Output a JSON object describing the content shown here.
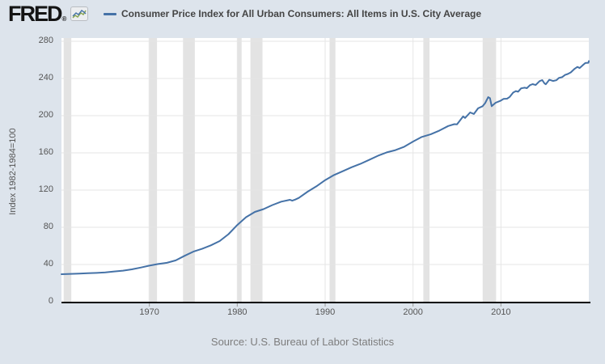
{
  "header": {
    "logo_text": "FRED",
    "logo_registered": "®",
    "title": "Consumer Price Index for All Urban Consumers: All Items in U.S. City Average"
  },
  "footer": {
    "source": "Source: U.S. Bureau of Labor Statistics"
  },
  "colors": {
    "page_background": "#dde4ec",
    "plot_background": "#ffffff",
    "line": "#4572a7",
    "recession_band": "#e3e3e3",
    "gridline": "#e6e6e6",
    "axis_line": "#000000",
    "tick_mark": "#999999",
    "tick_text": "#555555",
    "title_text": "#444444",
    "source_text": "#7d7d7d",
    "logo_icon_blue": "#4572a7",
    "logo_icon_green": "#89a54e"
  },
  "chart_data": {
    "type": "line",
    "title": "Consumer Price Index for All Urban Consumers: All Items in U.S. City Average",
    "xlabel": "",
    "ylabel": "Index 1982-1984=100",
    "xlim": [
      1960,
      2020
    ],
    "ylim": [
      0,
      283
    ],
    "x_ticks": [
      1970,
      1980,
      1990,
      2000,
      2010
    ],
    "y_ticks": [
      0,
      40,
      80,
      120,
      160,
      200,
      240,
      280
    ],
    "grid": true,
    "legend_position": "top-left",
    "recession_bands": [
      [
        1960.25,
        1961.12
      ],
      [
        1969.92,
        1970.87
      ],
      [
        1973.83,
        1975.17
      ],
      [
        1980.0,
        1980.5
      ],
      [
        1981.5,
        1982.87
      ],
      [
        1990.5,
        1991.17
      ],
      [
        2001.17,
        2001.87
      ],
      [
        2007.92,
        2009.45
      ]
    ],
    "series": [
      {
        "name": "Consumer Price Index for All Urban Consumers: All Items in U.S. City Average",
        "color": "#4572a7",
        "points": [
          [
            1960,
            29.6
          ],
          [
            1961,
            29.9
          ],
          [
            1962,
            30.3
          ],
          [
            1963,
            30.6
          ],
          [
            1964,
            31.0
          ],
          [
            1965,
            31.5
          ],
          [
            1966,
            32.5
          ],
          [
            1967,
            33.4
          ],
          [
            1968,
            34.8
          ],
          [
            1969,
            36.7
          ],
          [
            1970,
            38.8
          ],
          [
            1971,
            40.5
          ],
          [
            1972,
            41.8
          ],
          [
            1973,
            44.4
          ],
          [
            1974,
            49.3
          ],
          [
            1975,
            53.8
          ],
          [
            1976,
            56.9
          ],
          [
            1977,
            60.6
          ],
          [
            1978,
            65.2
          ],
          [
            1979,
            72.6
          ],
          [
            1980,
            82.4
          ],
          [
            1981,
            90.9
          ],
          [
            1982,
            96.5
          ],
          [
            1983,
            99.6
          ],
          [
            1984,
            103.9
          ],
          [
            1985,
            107.6
          ],
          [
            1986.0,
            109.6
          ],
          [
            1986.25,
            108.6
          ],
          [
            1986.6,
            109.8
          ],
          [
            1987,
            111.6
          ],
          [
            1988,
            118.3
          ],
          [
            1989,
            124.0
          ],
          [
            1990,
            130.7
          ],
          [
            1991,
            136.2
          ],
          [
            1992,
            140.3
          ],
          [
            1993,
            144.5
          ],
          [
            1994,
            148.2
          ],
          [
            1995,
            152.4
          ],
          [
            1996,
            156.9
          ],
          [
            1997,
            160.5
          ],
          [
            1998,
            163.0
          ],
          [
            1999,
            166.6
          ],
          [
            2000,
            172.2
          ],
          [
            2001,
            177.1
          ],
          [
            2002,
            179.9
          ],
          [
            2003,
            184.0
          ],
          [
            2004,
            188.9
          ],
          [
            2004.7,
            190.9
          ],
          [
            2005.0,
            190.7
          ],
          [
            2005.7,
            199.2
          ],
          [
            2005.92,
            197.6
          ],
          [
            2006.5,
            203.5
          ],
          [
            2006.92,
            201.8
          ],
          [
            2007.4,
            207.9
          ],
          [
            2007.92,
            210.2
          ],
          [
            2008.2,
            213.5
          ],
          [
            2008.55,
            219.9
          ],
          [
            2008.75,
            218.8
          ],
          [
            2008.95,
            210.2
          ],
          [
            2009.4,
            213.9
          ],
          [
            2009.92,
            215.9
          ],
          [
            2010.3,
            218.0
          ],
          [
            2010.7,
            218.3
          ],
          [
            2011.0,
            220.2
          ],
          [
            2011.4,
            224.9
          ],
          [
            2011.7,
            226.4
          ],
          [
            2011.95,
            225.7
          ],
          [
            2012.3,
            229.4
          ],
          [
            2012.7,
            230.1
          ],
          [
            2012.95,
            229.6
          ],
          [
            2013.3,
            232.8
          ],
          [
            2013.6,
            233.9
          ],
          [
            2013.95,
            233.0
          ],
          [
            2014.4,
            237.1
          ],
          [
            2014.7,
            238.3
          ],
          [
            2014.95,
            234.8
          ],
          [
            2015.1,
            233.7
          ],
          [
            2015.5,
            238.6
          ],
          [
            2015.92,
            237.3
          ],
          [
            2016.3,
            238.1
          ],
          [
            2016.6,
            240.6
          ],
          [
            2016.95,
            241.4
          ],
          [
            2017.3,
            243.8
          ],
          [
            2017.6,
            244.8
          ],
          [
            2017.95,
            246.5
          ],
          [
            2018.4,
            250.5
          ],
          [
            2018.7,
            252.4
          ],
          [
            2018.95,
            251.2
          ],
          [
            2019.3,
            254.2
          ],
          [
            2019.6,
            256.6
          ],
          [
            2019.95,
            256.9
          ],
          [
            2020.0,
            258.7
          ]
        ]
      }
    ]
  }
}
